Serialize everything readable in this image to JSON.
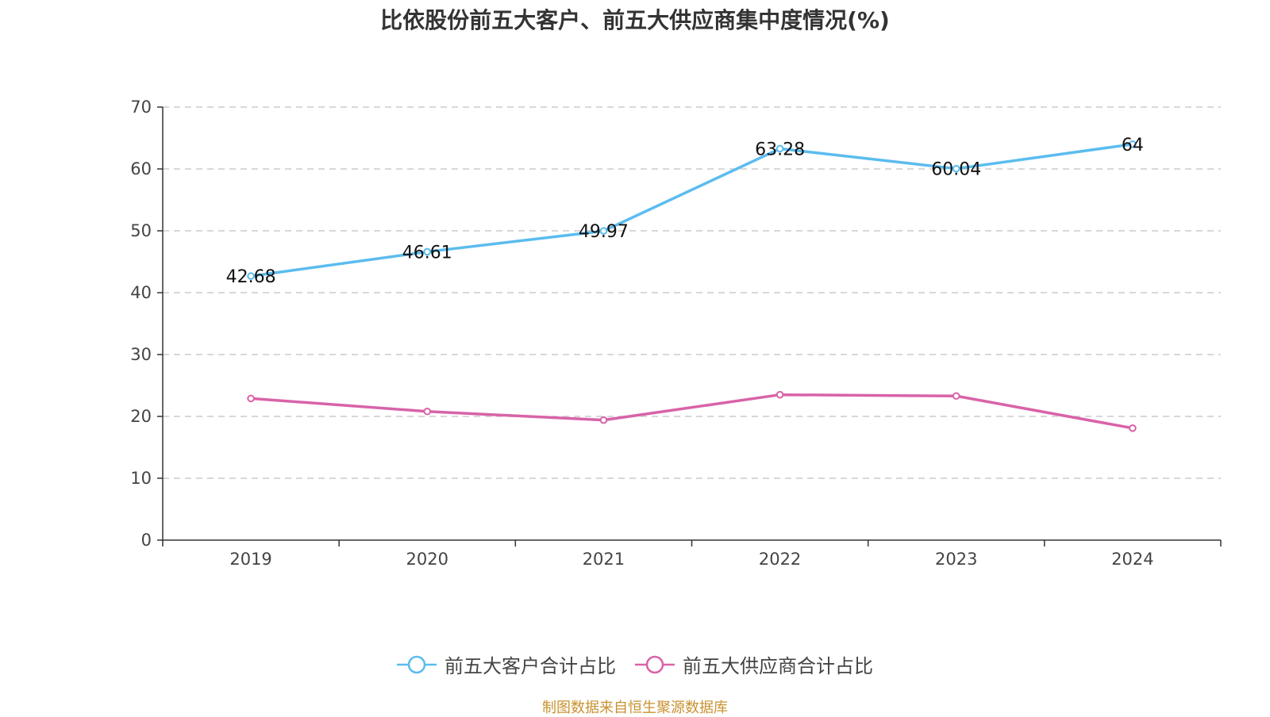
{
  "chart_data": {
    "type": "line",
    "title": "比依股份前五大客户、前五大供应商集中度情况(%)",
    "xlabel": "",
    "ylabel": "",
    "categories": [
      "2019",
      "2020",
      "2021",
      "2022",
      "2023",
      "2024"
    ],
    "ylim": [
      0,
      70
    ],
    "yticks": [
      0,
      10,
      20,
      30,
      40,
      50,
      60,
      70
    ],
    "grid": true,
    "legend_position": "bottom-center",
    "series": [
      {
        "name": "前五大客户合计占比",
        "color": "#5bbcef",
        "values": [
          42.68,
          46.61,
          49.97,
          63.28,
          60.04,
          64
        ],
        "labels": [
          "42.68",
          "46.61",
          "49.97",
          "63.28",
          "60.04",
          "64"
        ],
        "show_labels": true
      },
      {
        "name": "前五大供应商合计占比",
        "color": "#d863a8",
        "values": [
          22.9,
          20.8,
          19.4,
          23.5,
          23.3,
          18.1
        ],
        "show_labels": false
      }
    ]
  },
  "footer": {
    "source": "制图数据来自恒生聚源数据库"
  }
}
